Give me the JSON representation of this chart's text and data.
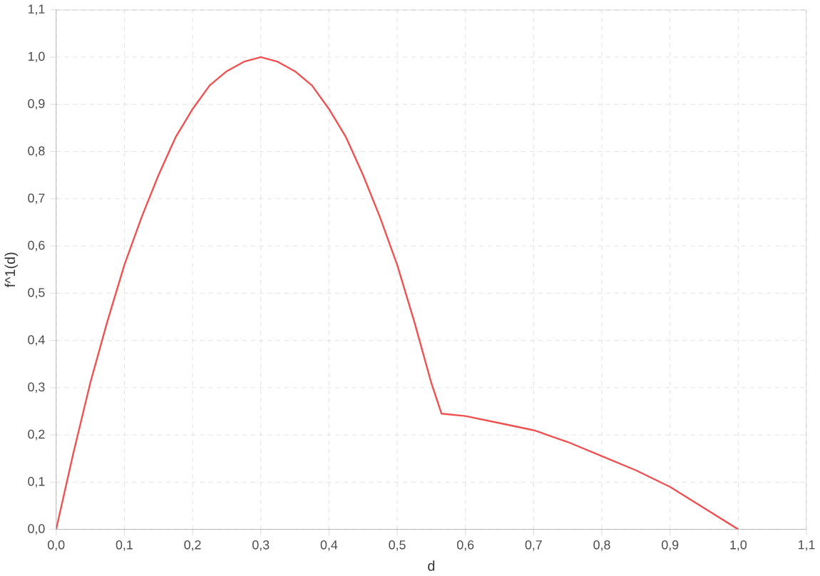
{
  "chart_data": {
    "type": "line",
    "xlabel": "d",
    "ylabel": "f^1(d)",
    "x": [
      0,
      0.025,
      0.05,
      0.075,
      0.1,
      0.125,
      0.15,
      0.175,
      0.2,
      0.225,
      0.25,
      0.275,
      0.3,
      0.325,
      0.35,
      0.375,
      0.4,
      0.425,
      0.45,
      0.475,
      0.5,
      0.525,
      0.55,
      0.565,
      0.6,
      0.65,
      0.7,
      0.75,
      0.8,
      0.85,
      0.9,
      0.95,
      1.0
    ],
    "series": [
      {
        "color": "#f05050",
        "values": [
          0,
          0.16,
          0.31,
          0.44,
          0.56,
          0.66,
          0.75,
          0.83,
          0.89,
          0.94,
          0.97,
          0.99,
          1.0,
          0.99,
          0.97,
          0.94,
          0.89,
          0.83,
          0.75,
          0.66,
          0.56,
          0.44,
          0.31,
          0.245,
          0.24,
          0.225,
          0.21,
          0.185,
          0.155,
          0.125,
          0.09,
          0.045,
          0
        ]
      }
    ],
    "xlim": [
      0,
      1.1
    ],
    "ylim": [
      0,
      1.1
    ],
    "xticks": [
      {
        "value": 0,
        "label": "0,0"
      },
      {
        "value": 0.1,
        "label": "0,1"
      },
      {
        "value": 0.2,
        "label": "0,2"
      },
      {
        "value": 0.3,
        "label": "0,3"
      },
      {
        "value": 0.4,
        "label": "0,4"
      },
      {
        "value": 0.5,
        "label": "0,5"
      },
      {
        "value": 0.6,
        "label": "0,6"
      },
      {
        "value": 0.7,
        "label": "0,7"
      },
      {
        "value": 0.8,
        "label": "0,8"
      },
      {
        "value": 0.9,
        "label": "0,9"
      },
      {
        "value": 1.0,
        "label": "1,0"
      },
      {
        "value": 1.1,
        "label": "1,1"
      }
    ],
    "yticks": [
      {
        "value": 0,
        "label": "0,0"
      },
      {
        "value": 0.1,
        "label": "0,1"
      },
      {
        "value": 0.2,
        "label": "0,2"
      },
      {
        "value": 0.3,
        "label": "0,3"
      },
      {
        "value": 0.4,
        "label": "0,4"
      },
      {
        "value": 0.5,
        "label": "0,5"
      },
      {
        "value": 0.6,
        "label": "0,6"
      },
      {
        "value": 0.7,
        "label": "0,7"
      },
      {
        "value": 0.8,
        "label": "0,8"
      },
      {
        "value": 0.9,
        "label": "0,9"
      },
      {
        "value": 1.0,
        "label": "1,0"
      },
      {
        "value": 1.1,
        "label": "1,1"
      }
    ],
    "grid": true,
    "marker": "none",
    "line_style": "solid"
  }
}
